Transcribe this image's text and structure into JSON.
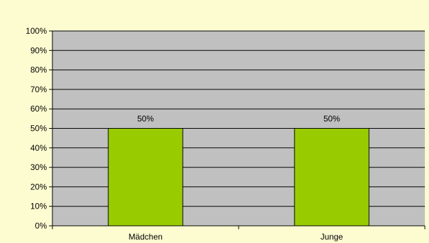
{
  "chart_data": {
    "type": "bar",
    "categories": [
      "Mädchen",
      "Junge"
    ],
    "values": [
      50,
      50
    ],
    "data_labels": [
      "50%",
      "50%"
    ],
    "y_ticks": [
      "0%",
      "10%",
      "20%",
      "30%",
      "40%",
      "50%",
      "60%",
      "70%",
      "80%",
      "90%",
      "100%"
    ],
    "ylim": [
      0,
      100
    ],
    "title": "",
    "xlabel": "",
    "ylabel": "",
    "grid": true,
    "legend": "none",
    "colors": {
      "bar_fill": "#99cc00",
      "bar_stroke": "#000000",
      "plot_background": "#c0c0c0",
      "chart_background": "#fdfbd0",
      "gridline": "#000000"
    }
  }
}
